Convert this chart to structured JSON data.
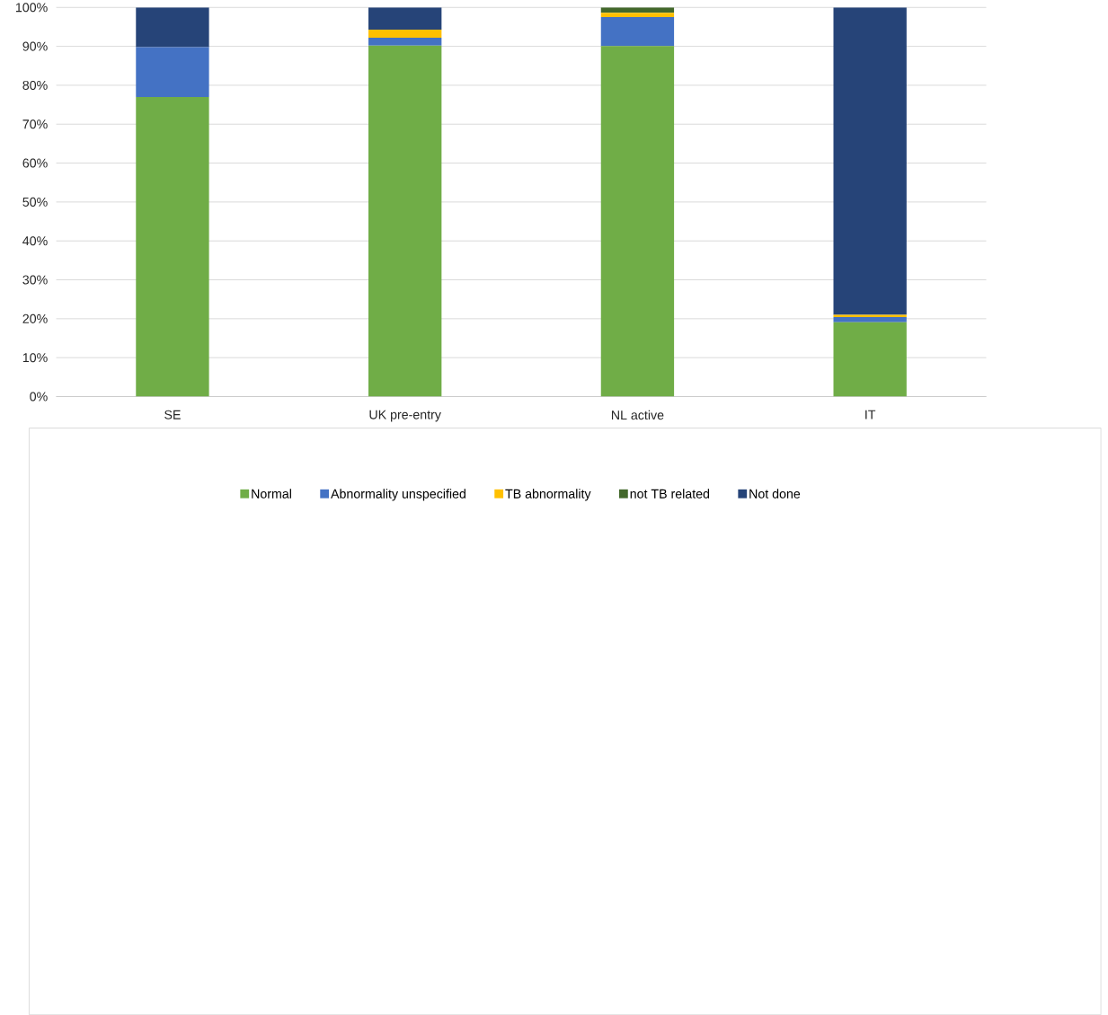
{
  "chart_data": {
    "type": "bar",
    "stacked": true,
    "categories": [
      "SE",
      "UK pre-entry",
      "NL active",
      "IT"
    ],
    "series": [
      {
        "name": "Normal",
        "color": "#70ad47",
        "values": [
          77,
          90.2,
          90.1,
          19.1
        ]
      },
      {
        "name": "Abnormality unspecified",
        "color": "#4472c4",
        "values": [
          12.8,
          2,
          7.4,
          1.3
        ]
      },
      {
        "name": "TB abnormality",
        "color": "#ffc000",
        "values": [
          0,
          2.1,
          1.1,
          0.6
        ]
      },
      {
        "name": "not TB related",
        "color": "#43682b",
        "values": [
          0,
          0,
          1.4,
          0
        ]
      },
      {
        "name": "Not done",
        "color": "#264478",
        "values": [
          10.2,
          5.7,
          0,
          79
        ]
      }
    ],
    "ylim": [
      0,
      100
    ],
    "yticks": [
      {
        "value": 0,
        "label": "0%"
      },
      {
        "value": 10,
        "label": "10%"
      },
      {
        "value": 20,
        "label": "20%"
      },
      {
        "value": 30,
        "label": "30%"
      },
      {
        "value": 40,
        "label": "40%"
      },
      {
        "value": 50,
        "label": "50%"
      },
      {
        "value": 60,
        "label": "60%"
      },
      {
        "value": 70,
        "label": "70%"
      },
      {
        "value": 80,
        "label": "80%"
      },
      {
        "value": 90,
        "label": "90%"
      },
      {
        "value": 100,
        "label": "100%"
      }
    ],
    "grid": "y",
    "legend": "bottom"
  }
}
